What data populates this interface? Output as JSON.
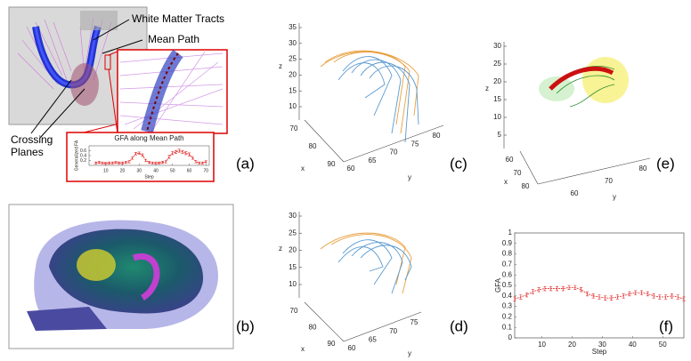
{
  "annotations": {
    "white_matter": "White Matter Tracts",
    "mean_path": "Mean Path",
    "crossing": "Crossing",
    "planes": "Planes"
  },
  "panel_labels": [
    "(a)",
    "(b)",
    "(c)",
    "(d)",
    "(e)",
    "(f)"
  ],
  "chart_data": [
    {
      "type": "line",
      "title": "GFA along Mean Path",
      "xlabel": "Step",
      "ylabel": "Generalized FA",
      "color": "#e02020",
      "x": [
        4,
        6,
        8,
        10,
        12,
        14,
        16,
        18,
        20,
        22,
        24,
        26,
        28,
        30,
        32,
        34,
        36,
        38,
        40,
        42,
        44,
        46,
        48,
        50,
        52,
        54,
        56,
        58,
        60,
        62,
        64,
        66,
        68,
        70
      ],
      "values": [
        0.1,
        0.12,
        0.1,
        0.08,
        0.1,
        0.1,
        0.12,
        0.1,
        0.1,
        0.12,
        0.15,
        0.3,
        0.48,
        0.5,
        0.42,
        0.2,
        0.12,
        0.1,
        0.1,
        0.1,
        0.12,
        0.15,
        0.35,
        0.5,
        0.55,
        0.6,
        0.55,
        0.5,
        0.45,
        0.3,
        0.15,
        0.1,
        0.1,
        0.15
      ],
      "errors": [
        0.04,
        0.04,
        0.04,
        0.04,
        0.04,
        0.04,
        0.04,
        0.04,
        0.04,
        0.04,
        0.05,
        0.05,
        0.05,
        0.05,
        0.05,
        0.05,
        0.04,
        0.04,
        0.04,
        0.04,
        0.04,
        0.05,
        0.06,
        0.06,
        0.06,
        0.06,
        0.06,
        0.06,
        0.06,
        0.05,
        0.05,
        0.04,
        0.04,
        0.04
      ],
      "xlim": [
        0,
        72
      ],
      "ylim": [
        0,
        0.8
      ],
      "xticks": [
        10,
        20,
        30,
        40,
        50,
        60,
        70
      ],
      "yticks": [
        0.2,
        0.4,
        0.6
      ]
    },
    {
      "type": "line",
      "xlabel": "Step",
      "ylabel": "GFA",
      "color": "#e02020",
      "x": [
        1,
        3,
        5,
        7,
        9,
        11,
        13,
        15,
        17,
        19,
        21,
        23,
        25,
        27,
        29,
        31,
        33,
        35,
        37,
        39,
        41,
        43,
        45,
        47,
        49,
        51,
        53,
        55,
        57
      ],
      "values": [
        0.37,
        0.39,
        0.41,
        0.44,
        0.46,
        0.47,
        0.47,
        0.47,
        0.47,
        0.48,
        0.48,
        0.46,
        0.42,
        0.4,
        0.39,
        0.38,
        0.38,
        0.39,
        0.4,
        0.42,
        0.43,
        0.43,
        0.42,
        0.4,
        0.39,
        0.39,
        0.4,
        0.39,
        0.37
      ],
      "errors": [
        0.02,
        0.02,
        0.02,
        0.02,
        0.02,
        0.02,
        0.02,
        0.02,
        0.02,
        0.02,
        0.02,
        0.02,
        0.02,
        0.02,
        0.02,
        0.02,
        0.02,
        0.02,
        0.02,
        0.02,
        0.02,
        0.02,
        0.02,
        0.02,
        0.02,
        0.02,
        0.02,
        0.02,
        0.02
      ],
      "xlim": [
        1,
        57
      ],
      "ylim": [
        0,
        1
      ],
      "xticks": [
        10,
        20,
        30,
        40,
        50
      ],
      "yticks": [
        0,
        0.1,
        0.2,
        0.3,
        0.4,
        0.5,
        0.6,
        0.7,
        0.8,
        0.9,
        1
      ]
    }
  ],
  "axes3d": [
    {
      "zlabel": "z",
      "xlabel": "x",
      "ylabel": "y",
      "zticks": [
        35,
        30,
        25,
        20,
        15,
        10
      ],
      "xticks": [
        70,
        80,
        90
      ],
      "yticks": [
        60,
        65,
        70,
        75,
        80
      ]
    },
    {
      "zlabel": "z",
      "xlabel": "x",
      "ylabel": "y",
      "zticks": [
        30,
        25,
        20,
        15,
        10
      ],
      "xticks": [
        70,
        80,
        90
      ],
      "yticks": [
        60,
        65,
        70,
        75
      ]
    },
    {
      "zlabel": "z",
      "xlabel": "x",
      "ylabel": "y",
      "zticks": [
        30,
        25,
        20,
        15,
        10,
        5
      ],
      "xticks": [
        60,
        70,
        80
      ],
      "yticks": [
        60,
        70,
        80
      ]
    }
  ]
}
